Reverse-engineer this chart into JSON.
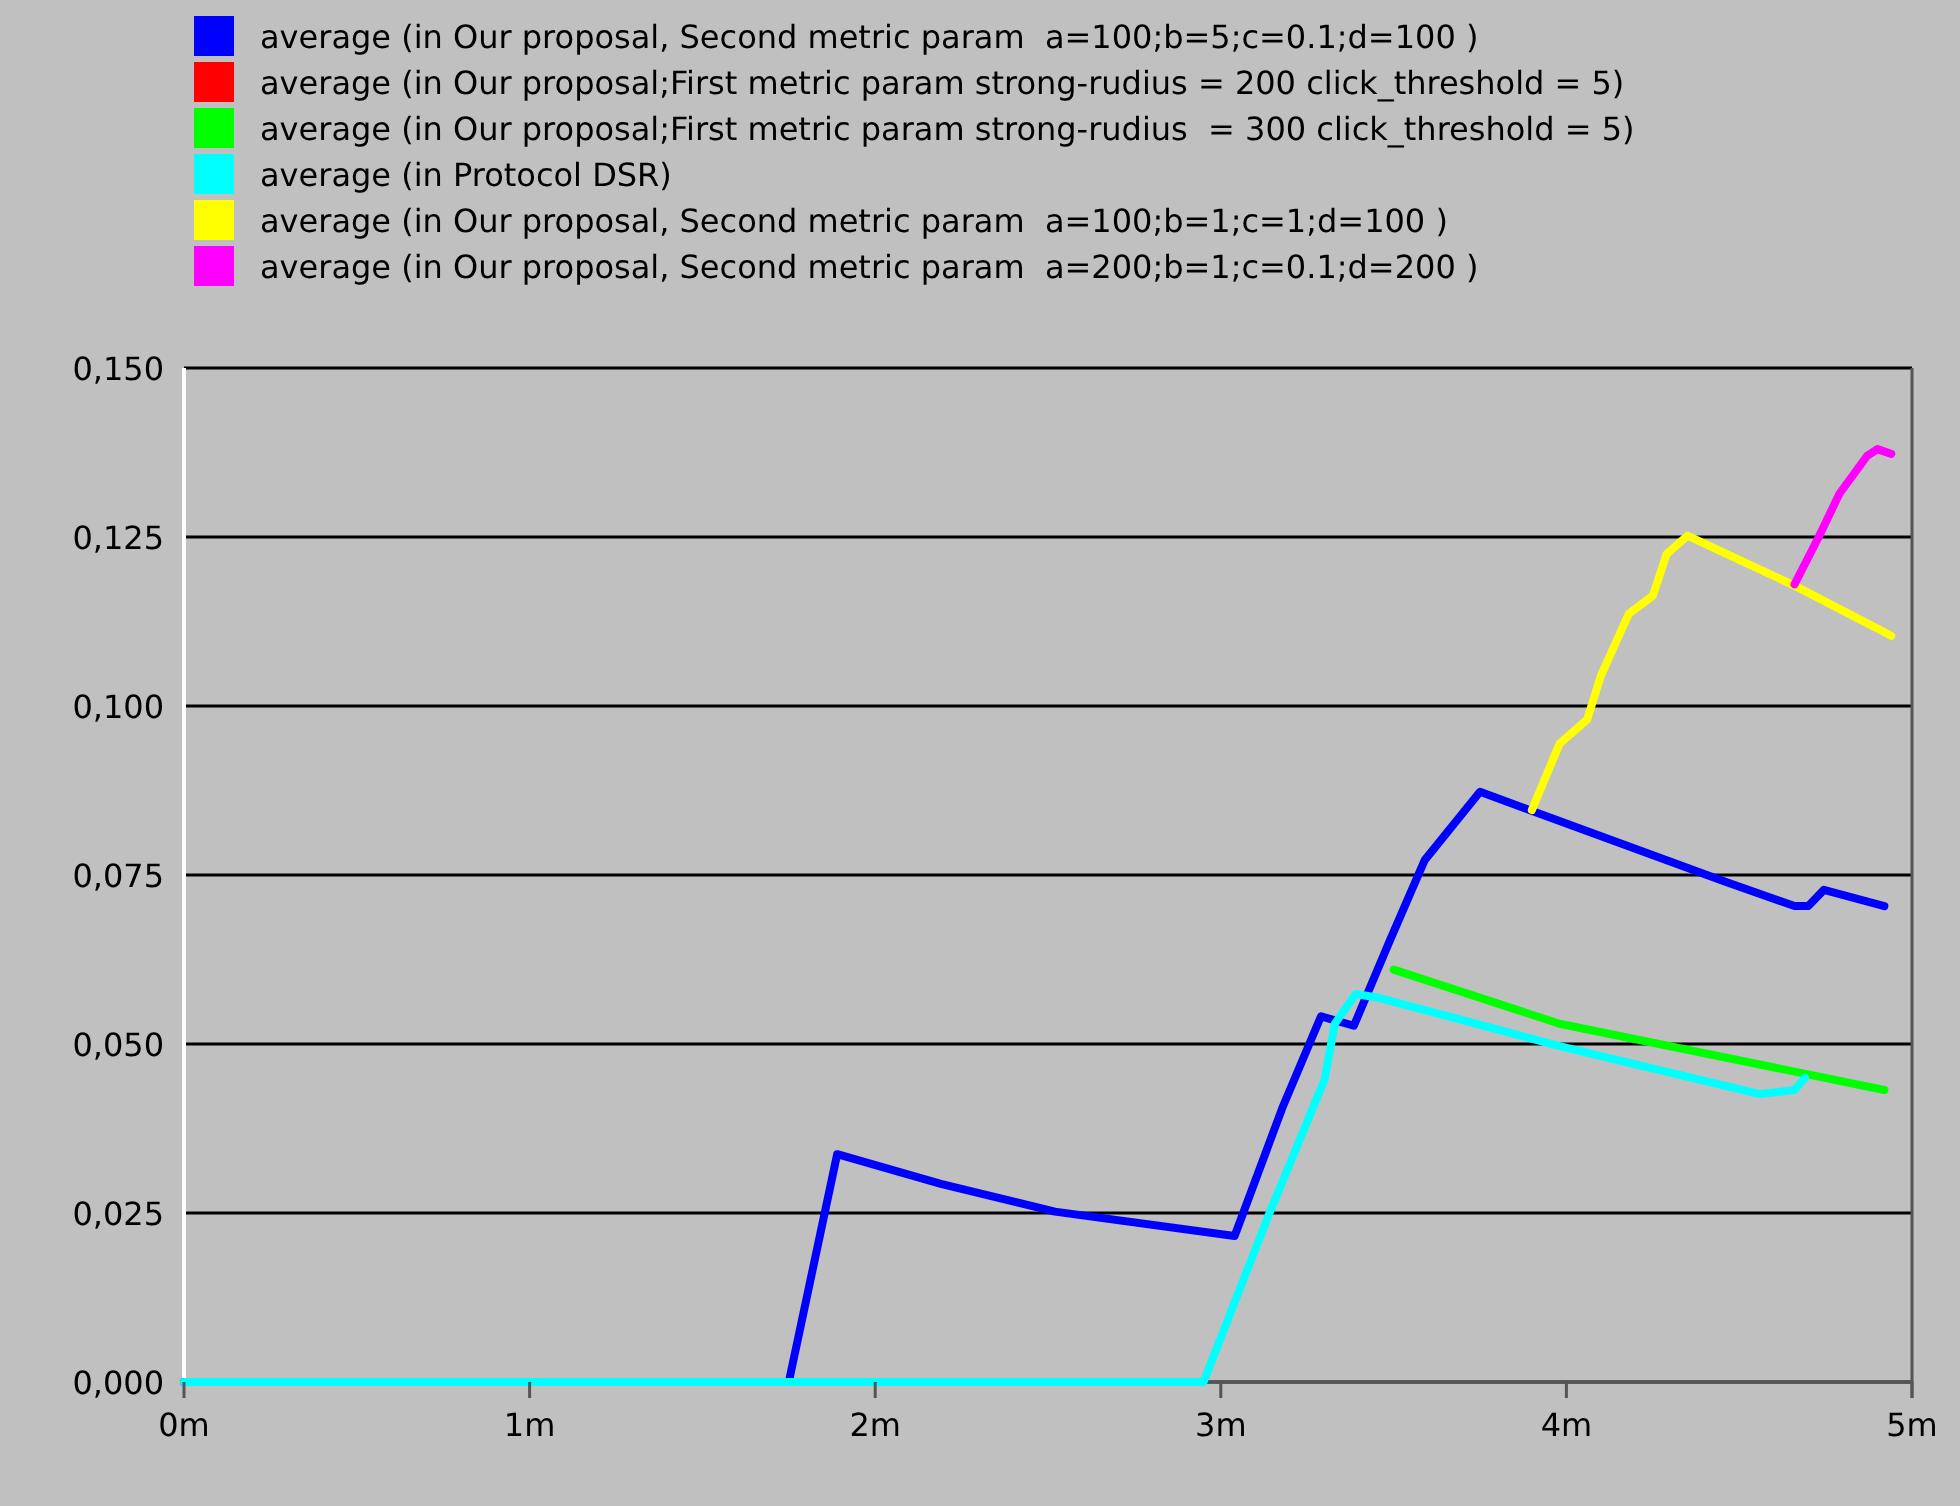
{
  "chart_data": {
    "type": "line",
    "xlim": [
      0,
      5
    ],
    "xticks": [
      {
        "value": 0,
        "label": "0m"
      },
      {
        "value": 1,
        "label": "1m"
      },
      {
        "value": 2,
        "label": "2m"
      },
      {
        "value": 3,
        "label": "3m"
      },
      {
        "value": 4,
        "label": "4m"
      },
      {
        "value": 5,
        "label": "5m"
      }
    ],
    "ylim": [
      0,
      0.15
    ],
    "yticks": [
      {
        "value": 0,
        "label": "0,000"
      },
      {
        "value": 0.025,
        "label": "0,025"
      },
      {
        "value": 0.05,
        "label": "0,050"
      },
      {
        "value": 0.075,
        "label": "0,075"
      },
      {
        "value": 0.1,
        "label": "0,100"
      },
      {
        "value": 0.125,
        "label": "0,125"
      },
      {
        "value": 0.15,
        "label": "0,150"
      }
    ],
    "grid": "y",
    "legend": "top left",
    "marker": "none",
    "line_style": "solid",
    "series": [
      {
        "name": "average (in Our proposal, Second metric param  a=100;b=5;c=0.1;d=100 )",
        "color": "#0000ff",
        "x": [
          0,
          1.75,
          1.89,
          2.19,
          2.52,
          3.04,
          3.18,
          3.29,
          3.385,
          3.49,
          3.59,
          3.75,
          4.46,
          4.66,
          4.7,
          4.745,
          4.92
        ],
        "values": [
          0,
          0,
          0.0337,
          0.0293,
          0.0252,
          0.0216,
          0.0408,
          0.0541,
          0.0527,
          0.0654,
          0.0772,
          0.0873,
          0.074,
          0.0704,
          0.0704,
          0.0728,
          0.0704
        ]
      },
      {
        "name": "average (in Our proposal;First metric param strong-rudius = 200 click_threshold = 5)",
        "color": "#ff0000"
      },
      {
        "name": "average (in Our proposal;First metric param strong-rudius  = 300 click_threshold = 5)",
        "color": "#00ff00",
        "x": [
          3.5,
          3.98,
          4.92
        ],
        "values": [
          0.061,
          0.053,
          0.0432
        ]
      },
      {
        "name": "average (in Protocol DSR)",
        "color": "#00ffff",
        "x": [
          0,
          2.95,
          3.14,
          3.3,
          3.33,
          3.39,
          3.46,
          3.98,
          4.56,
          4.66,
          4.69
        ],
        "values": [
          0,
          0,
          0.0249,
          0.0447,
          0.053,
          0.0574,
          0.0568,
          0.0497,
          0.0426,
          0.0432,
          0.045
        ]
      },
      {
        "name": "average (in Our proposal, Second metric param  a=100;b=1;c=1;d=100 )",
        "color": "#ffff00",
        "x": [
          3.9,
          3.98,
          4.06,
          4.1,
          4.18,
          4.25,
          4.29,
          4.35,
          4.66,
          4.94
        ],
        "values": [
          0.0846,
          0.0944,
          0.098,
          0.1045,
          0.1136,
          0.1163,
          0.1225,
          0.1252,
          0.1178,
          0.1104
        ]
      },
      {
        "name": "average (in Our proposal, Second metric param  a=200;b=1;c=0.1;d=200 )",
        "color": "#ff00ff",
        "x": [
          4.66,
          4.73,
          4.79,
          4.87,
          4.9,
          4.94
        ],
        "values": [
          0.118,
          0.125,
          0.1314,
          0.137,
          0.138,
          0.1373
        ]
      }
    ]
  }
}
